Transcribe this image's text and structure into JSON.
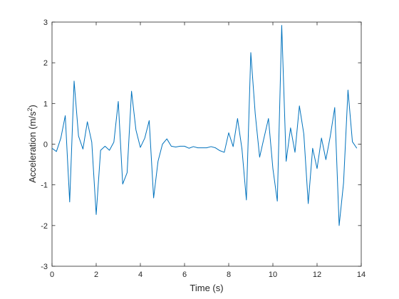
{
  "chart_data": {
    "type": "line",
    "title": "",
    "xlabel": "Time (s)",
    "ylabel_main": "Acceleration (m/s",
    "ylabel_sup": "2",
    "ylabel_tail": ")",
    "xlim": [
      0,
      14
    ],
    "ylim": [
      -3,
      3
    ],
    "xticks": [
      0,
      2,
      4,
      6,
      8,
      10,
      12,
      14
    ],
    "yticks": [
      -3,
      -2,
      -1,
      0,
      1,
      2,
      3
    ],
    "grid": false,
    "legend": "none",
    "line_color": "#0072bd",
    "series": [
      {
        "x": [
          0,
          0.2,
          0.4,
          0.6,
          0.8,
          1.0,
          1.2,
          1.4,
          1.6,
          1.8,
          2.0,
          2.2,
          2.4,
          2.6,
          2.8,
          3.0,
          3.2,
          3.4,
          3.6,
          3.8,
          4.0,
          4.2,
          4.4,
          4.6,
          4.8,
          5.0,
          5.2,
          5.4,
          5.6,
          5.8,
          6.0,
          6.2,
          6.4,
          6.6,
          6.8,
          7.0,
          7.2,
          7.4,
          7.6,
          7.8,
          8.0,
          8.2,
          8.4,
          8.6,
          8.8,
          9.0,
          9.2,
          9.4,
          9.6,
          9.8,
          10.0,
          10.2,
          10.4,
          10.6,
          10.8,
          11.0,
          11.2,
          11.4,
          11.6,
          11.8,
          12.0,
          12.2,
          12.4,
          12.6,
          12.8,
          13.0,
          13.2,
          13.4,
          13.6,
          13.8
        ],
        "values": [
          -0.1,
          -0.18,
          0.15,
          0.7,
          -1.42,
          1.55,
          0.2,
          -0.12,
          0.55,
          0.05,
          -1.73,
          -0.15,
          -0.05,
          -0.15,
          0.05,
          1.05,
          -0.98,
          -0.7,
          1.3,
          0.35,
          -0.08,
          0.15,
          0.58,
          -1.32,
          -0.42,
          0.0,
          0.13,
          -0.05,
          -0.07,
          -0.05,
          -0.05,
          -0.1,
          -0.06,
          -0.09,
          -0.09,
          -0.09,
          -0.06,
          -0.09,
          -0.16,
          -0.2,
          0.28,
          -0.06,
          0.63,
          -0.12,
          -1.37,
          2.25,
          0.75,
          -0.32,
          0.16,
          0.63,
          -0.6,
          -1.4,
          2.92,
          -0.42,
          0.4,
          -0.2,
          0.94,
          0.25,
          -1.46,
          -0.1,
          -0.6,
          0.15,
          -0.38,
          0.2,
          0.9,
          -2.0,
          -0.95,
          1.33,
          0.06,
          -0.1
        ]
      }
    ]
  }
}
